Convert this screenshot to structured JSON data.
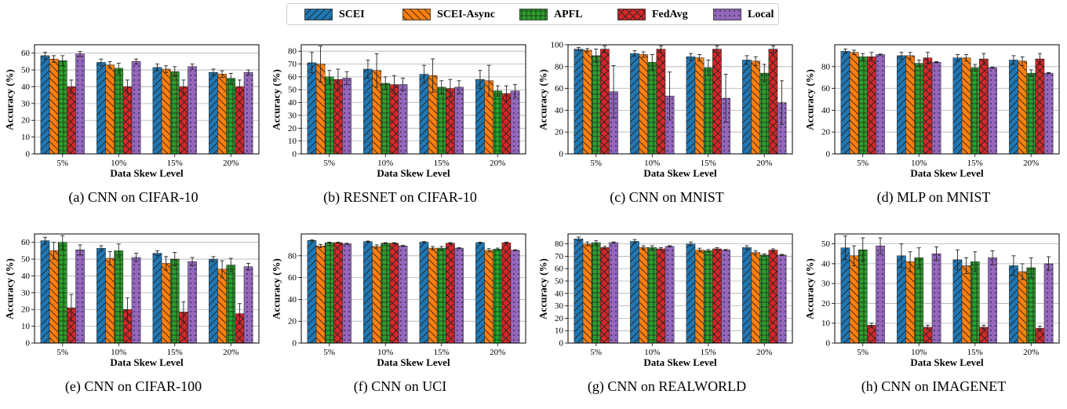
{
  "legend": {
    "items": [
      {
        "name": "SCEI",
        "color": "#1f77b4",
        "hatch": "diag"
      },
      {
        "name": "SCEI-Async",
        "color": "#ff7f0e",
        "hatch": "back"
      },
      {
        "name": "APFL",
        "color": "#2ca02c",
        "hatch": "grid"
      },
      {
        "name": "FedAvg",
        "color": "#d62728",
        "hatch": "cross"
      },
      {
        "name": "Local",
        "color": "#9467bd",
        "hatch": "dots"
      }
    ]
  },
  "chart_data": [
    {
      "type": "bar",
      "caption": "(a)  CNN on CIFAR-10",
      "xlabel": "Data Skew Level",
      "ylabel": "Accuracy (%)",
      "categories": [
        "5%",
        "10%",
        "15%",
        "20%"
      ],
      "ylim": [
        0,
        65
      ],
      "yticks": [
        0,
        10,
        20,
        30,
        40,
        50,
        60
      ],
      "grid": true,
      "series": [
        {
          "name": "SCEI",
          "values": [
            58.5,
            54.5,
            51.5,
            48.5
          ],
          "errors": [
            2,
            2,
            2,
            2
          ]
        },
        {
          "name": "SCEI-Async",
          "values": [
            56.5,
            53,
            50.5,
            47.5
          ],
          "errors": [
            2,
            2,
            2,
            2
          ]
        },
        {
          "name": "APFL",
          "values": [
            55.5,
            51,
            49,
            45
          ],
          "errors": [
            3,
            3,
            3,
            3
          ]
        },
        {
          "name": "FedAvg",
          "values": [
            40,
            40,
            40,
            40
          ],
          "errors": [
            4,
            4,
            4,
            4
          ]
        },
        {
          "name": "Local",
          "values": [
            59.5,
            55,
            52,
            48.5
          ],
          "errors": [
            1.5,
            1.5,
            1.5,
            1.5
          ]
        }
      ]
    },
    {
      "type": "bar",
      "caption": "(b)  RESNET on CIFAR-10",
      "xlabel": "Data Skew Level",
      "ylabel": "Accuracy (%)",
      "categories": [
        "5%",
        "10%",
        "15%",
        "20%"
      ],
      "ylim": [
        0,
        85
      ],
      "yticks": [
        0,
        10,
        20,
        30,
        40,
        50,
        60,
        70,
        80
      ],
      "grid": true,
      "series": [
        {
          "name": "SCEI",
          "values": [
            71,
            66,
            62,
            58
          ],
          "errors": [
            8,
            7,
            7,
            7
          ]
        },
        {
          "name": "SCEI-Async",
          "values": [
            70,
            65,
            61,
            57
          ],
          "errors": [
            14,
            13,
            13,
            12
          ]
        },
        {
          "name": "APFL",
          "values": [
            60,
            55,
            52,
            49
          ],
          "errors": [
            5,
            5,
            5,
            4
          ]
        },
        {
          "name": "FedAvg",
          "values": [
            58,
            54,
            51,
            47
          ],
          "errors": [
            8,
            7,
            7,
            6
          ]
        },
        {
          "name": "Local",
          "values": [
            59,
            54,
            52,
            49
          ],
          "errors": [
            5,
            5,
            5,
            5
          ]
        }
      ]
    },
    {
      "type": "bar",
      "caption": "(c)  CNN on MNIST",
      "xlabel": "Data Skew Level",
      "ylabel": "Accuracy (%)",
      "categories": [
        "5%",
        "10%",
        "15%",
        "20%"
      ],
      "ylim": [
        0,
        100
      ],
      "yticks": [
        0,
        20,
        40,
        60,
        80,
        100
      ],
      "grid": true,
      "series": [
        {
          "name": "SCEI",
          "values": [
            96,
            92,
            89,
            86
          ],
          "errors": [
            1.5,
            2.5,
            3,
            4
          ]
        },
        {
          "name": "SCEI-Async",
          "values": [
            95,
            91,
            88,
            85
          ],
          "errors": [
            1.5,
            2.5,
            3,
            4
          ]
        },
        {
          "name": "APFL",
          "values": [
            90,
            84,
            79,
            74
          ],
          "errors": [
            6,
            7,
            7,
            8
          ]
        },
        {
          "name": "FedAvg",
          "values": [
            96,
            96,
            96,
            96
          ],
          "errors": [
            3,
            3,
            3,
            3
          ]
        },
        {
          "name": "Local",
          "values": [
            57,
            53,
            51,
            47
          ],
          "errors": [
            24,
            22,
            22,
            20
          ]
        }
      ]
    },
    {
      "type": "bar",
      "caption": "(d)  MLP on MNIST",
      "xlabel": "Data Skew Level",
      "ylabel": "Accuracy (%)",
      "categories": [
        "5%",
        "10%",
        "15%",
        "20%"
      ],
      "ylim": [
        0,
        100
      ],
      "yticks": [
        0,
        20,
        40,
        60,
        80
      ],
      "grid": true,
      "series": [
        {
          "name": "SCEI",
          "values": [
            94,
            90,
            88,
            86
          ],
          "errors": [
            2,
            3,
            3,
            4
          ]
        },
        {
          "name": "SCEI-Async",
          "values": [
            93,
            90,
            88,
            85
          ],
          "errors": [
            2,
            3,
            3,
            4
          ]
        },
        {
          "name": "APFL",
          "values": [
            89,
            83,
            79,
            74
          ],
          "errors": [
            3,
            3,
            3,
            3
          ]
        },
        {
          "name": "FedAvg",
          "values": [
            89,
            88,
            87,
            87
          ],
          "errors": [
            4,
            5,
            5,
            5
          ]
        },
        {
          "name": "Local",
          "values": [
            91,
            84,
            79,
            74
          ],
          "errors": [
            0.5,
            0.5,
            0.5,
            0.5
          ]
        }
      ]
    },
    {
      "type": "bar",
      "caption": "(e)  CNN on CIFAR-100",
      "xlabel": "Data Skew Level",
      "ylabel": "Accuracy (%)",
      "categories": [
        "5%",
        "10%",
        "15%",
        "20%"
      ],
      "ylim": [
        0,
        65
      ],
      "yticks": [
        0,
        10,
        20,
        30,
        40,
        50,
        60
      ],
      "grid": true,
      "series": [
        {
          "name": "SCEI",
          "values": [
            61,
            56.5,
            53.5,
            50
          ],
          "errors": [
            2,
            1.5,
            1.5,
            1.5
          ]
        },
        {
          "name": "SCEI-Async",
          "values": [
            55,
            50.5,
            47.5,
            44
          ],
          "errors": [
            5,
            4,
            4,
            5
          ]
        },
        {
          "name": "APFL",
          "values": [
            60,
            55,
            50,
            46.5
          ],
          "errors": [
            4,
            4,
            4,
            4
          ]
        },
        {
          "name": "FedAvg",
          "values": [
            21,
            20,
            18.5,
            17.5
          ],
          "errors": [
            8,
            7,
            6,
            6
          ]
        },
        {
          "name": "Local",
          "values": [
            55.5,
            51,
            48.5,
            45.5
          ],
          "errors": [
            3,
            2.5,
            2.5,
            2
          ]
        }
      ]
    },
    {
      "type": "bar",
      "caption": "(f)  CNN on UCI",
      "xlabel": "Data Skew Level",
      "ylabel": "Accuracy (%)",
      "categories": [
        "5%",
        "10%",
        "15%",
        "20%"
      ],
      "ylim": [
        0,
        100
      ],
      "yticks": [
        0,
        20,
        40,
        60,
        80
      ],
      "grid": true,
      "series": [
        {
          "name": "SCEI",
          "values": [
            94,
            93,
            92.5,
            92
          ],
          "errors": [
            0.5,
            0.5,
            0.5,
            0.5
          ]
        },
        {
          "name": "SCEI-Async",
          "values": [
            89,
            88.5,
            87,
            85
          ],
          "errors": [
            1.5,
            1.5,
            1.5,
            1.5
          ]
        },
        {
          "name": "APFL",
          "values": [
            92,
            91.5,
            87,
            86
          ],
          "errors": [
            0.5,
            0.5,
            1.5,
            1
          ]
        },
        {
          "name": "FedAvg",
          "values": [
            92,
            91.5,
            91.5,
            92
          ],
          "errors": [
            0.5,
            0.5,
            0.5,
            0.5
          ]
        },
        {
          "name": "Local",
          "values": [
            91,
            89,
            87,
            85
          ],
          "errors": [
            0.5,
            0.5,
            0.5,
            0.5
          ]
        }
      ]
    },
    {
      "type": "bar",
      "caption": "(g)  CNN on REALWORLD",
      "xlabel": "Data Skew Level",
      "ylabel": "Accuracy (%)",
      "categories": [
        "5%",
        "10%",
        "15%",
        "20%"
      ],
      "ylim": [
        0,
        88
      ],
      "yticks": [
        0,
        10,
        20,
        30,
        40,
        50,
        60,
        70,
        80
      ],
      "grid": true,
      "series": [
        {
          "name": "SCEI",
          "values": [
            84,
            82,
            80,
            77
          ],
          "errors": [
            1.5,
            1.5,
            1.5,
            1.5
          ]
        },
        {
          "name": "SCEI-Async",
          "values": [
            80,
            77,
            75,
            73
          ],
          "errors": [
            1.5,
            1.5,
            1.5,
            1.5
          ]
        },
        {
          "name": "APFL",
          "values": [
            81,
            77,
            74.5,
            71
          ],
          "errors": [
            1.5,
            1.5,
            1,
            1
          ]
        },
        {
          "name": "FedAvg",
          "values": [
            77,
            76,
            76,
            75
          ],
          "errors": [
            1,
            1,
            1,
            1
          ]
        },
        {
          "name": "Local",
          "values": [
            81,
            78,
            75,
            71
          ],
          "errors": [
            0.5,
            0.5,
            0.5,
            0.5
          ]
        }
      ]
    },
    {
      "type": "bar",
      "caption": "(h)  CNN on IMAGENET",
      "xlabel": "Data Skew Level",
      "ylabel": "Accuracy (%)",
      "categories": [
        "5%",
        "10%",
        "15%",
        "20%"
      ],
      "ylim": [
        0,
        55
      ],
      "yticks": [
        0,
        10,
        20,
        30,
        40,
        50
      ],
      "grid": true,
      "series": [
        {
          "name": "SCEI",
          "values": [
            48,
            44,
            42,
            39
          ],
          "errors": [
            6,
            6,
            5,
            5
          ]
        },
        {
          "name": "SCEI-Async",
          "values": [
            44,
            41,
            39,
            36
          ],
          "errors": [
            5,
            5,
            4,
            4
          ]
        },
        {
          "name": "APFL",
          "values": [
            47,
            43,
            41,
            38
          ],
          "errors": [
            6,
            5,
            5,
            5
          ]
        },
        {
          "name": "FedAvg",
          "values": [
            9,
            8,
            8,
            7.5
          ],
          "errors": [
            1,
            1,
            1,
            1
          ]
        },
        {
          "name": "Local",
          "values": [
            49,
            45,
            43,
            40
          ],
          "errors": [
            4,
            3.5,
            3.5,
            3.5
          ]
        }
      ]
    }
  ]
}
